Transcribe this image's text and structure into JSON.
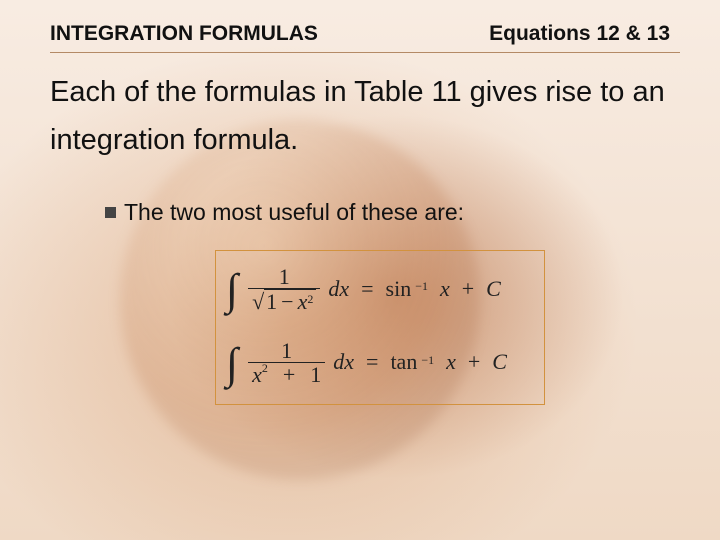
{
  "header": {
    "section_title": "INTEGRATION FORMULAS",
    "equation_label": "Equations 12 & 13"
  },
  "body": {
    "paragraph": "Each of the formulas in Table 11 gives rise to an integration formula."
  },
  "bullet": {
    "text": "The two most useful of these are:"
  },
  "formulas": {
    "f1": {
      "numerator": "1",
      "radicand_lhs": "1",
      "radicand_op": "−",
      "radicand_var": "x",
      "radicand_exp": "2",
      "dx": "dx",
      "eq": "=",
      "rhs_fn": "sin",
      "rhs_sup": "−1",
      "rhs_x": "x",
      "plus": "+",
      "C": "C"
    },
    "f2": {
      "numerator": "1",
      "den_var": "x",
      "den_exp": "2",
      "den_op": "+",
      "den_rhs": "1",
      "dx": "dx",
      "eq": "=",
      "rhs_fn": "tan",
      "rhs_sup": "−1",
      "rhs_x": "x",
      "plus": "+",
      "C": "C"
    }
  },
  "style": {
    "box_border": "#d2923e",
    "accent_bg": "#f4e4d6",
    "text_color": "#111"
  }
}
